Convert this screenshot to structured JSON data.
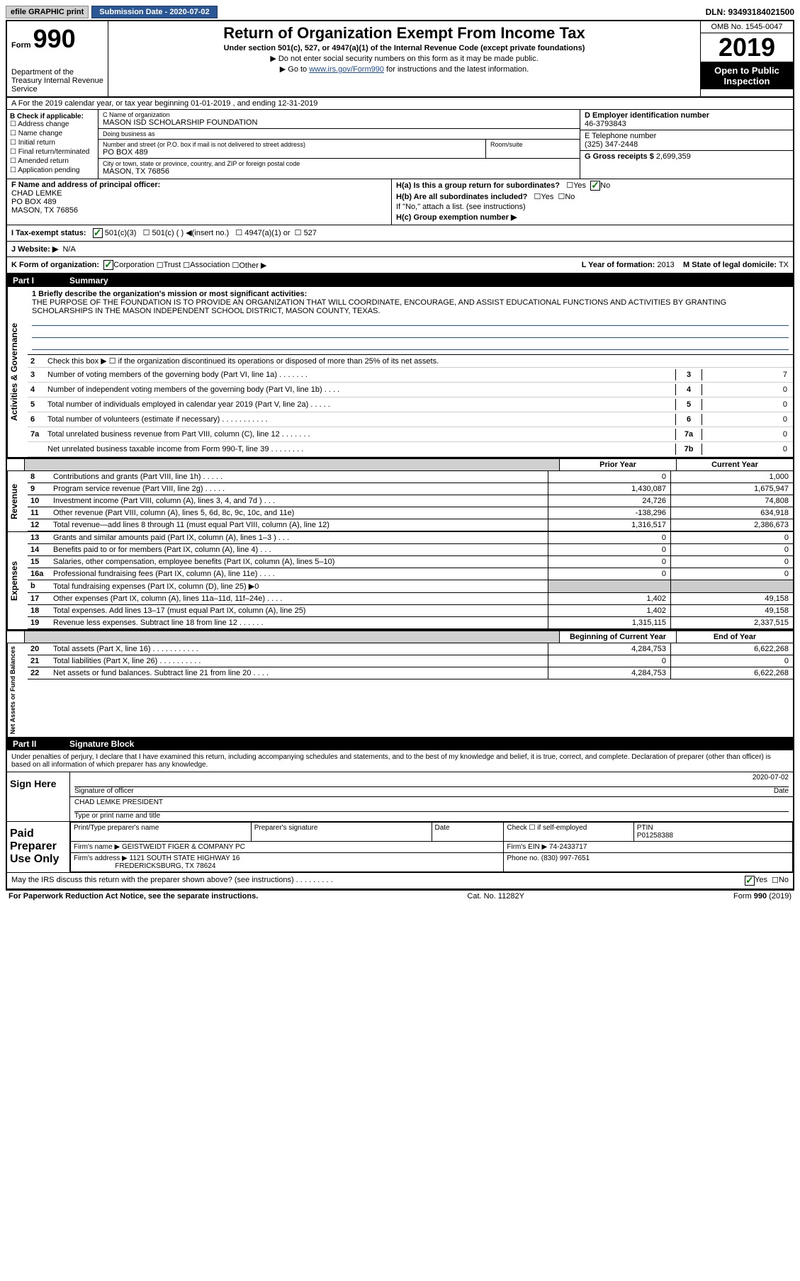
{
  "topbar": {
    "efile": "efile GRAPHIC print",
    "submission_label": "Submission Date - 2020-07-02",
    "dln": "DLN: 93493184021500"
  },
  "header": {
    "form_label": "Form",
    "form_number": "990",
    "dept": "Department of the Treasury\nInternal Revenue Service",
    "title": "Return of Organization Exempt From Income Tax",
    "subtitle": "Under section 501(c), 527, or 4947(a)(1) of the Internal Revenue Code (except private foundations)",
    "note1": "▶ Do not enter social security numbers on this form as it may be made public.",
    "note2_label": "▶ Go to ",
    "note2_link": "www.irs.gov/Form990",
    "note2_suffix": " for instructions and the latest information.",
    "omb": "OMB No. 1545-0047",
    "year": "2019",
    "pub": "Open to Public Inspection"
  },
  "row_a": "A For the 2019 calendar year, or tax year beginning 01-01-2019   , and ending 12-31-2019",
  "col_b": {
    "header": "B Check if applicable:",
    "items": [
      "Address change",
      "Name change",
      "Initial return",
      "Final return/terminated",
      "Amended return",
      "Application pending"
    ]
  },
  "col_c": {
    "name_label": "C Name of organization",
    "name": "MASON ISD SCHOLARSHIP FOUNDATION",
    "dba_label": "Doing business as",
    "dba": "",
    "addr_label": "Number and street (or P.O. box if mail is not delivered to street address)",
    "addr": "PO BOX 489",
    "room_label": "Room/suite",
    "city_label": "City or town, state or province, country, and ZIP or foreign postal code",
    "city": "MASON, TX  76856"
  },
  "col_d": {
    "ein_label": "D Employer identification number",
    "ein": "46-3793843",
    "phone_label": "E Telephone number",
    "phone": "(325) 347-2448",
    "gross_label": "G Gross receipts $",
    "gross": "2,699,359"
  },
  "row_f": {
    "f_label": "F  Name and address of principal officer:",
    "f_name": "CHAD LEMKE",
    "f_addr1": "PO BOX 489",
    "f_addr2": "MASON, TX  76856",
    "ha_label": "H(a)  Is this a group return for subordinates?",
    "ha_yes": "Yes",
    "ha_no": "No",
    "hb_label": "H(b)  Are all subordinates included?",
    "hb_note": "If \"No,\" attach a list. (see instructions)",
    "hc_label": "H(c)  Group exemption number ▶"
  },
  "row_i": {
    "label": "I  Tax-exempt status:",
    "opt1": "501(c)(3)",
    "opt2": "501(c) (  ) ◀(insert no.)",
    "opt3": "4947(a)(1) or",
    "opt4": "527"
  },
  "row_j": {
    "label": "J  Website: ▶",
    "val": "N/A"
  },
  "row_k": {
    "k_label": "K Form of organization:",
    "k_opts": [
      "Corporation",
      "Trust",
      "Association",
      "Other ▶"
    ],
    "l_label": "L Year of formation:",
    "l_val": "2013",
    "m_label": "M State of legal domicile:",
    "m_val": "TX"
  },
  "part1": {
    "header_part": "Part I",
    "header_title": "Summary",
    "line1_label": "1  Briefly describe the organization's mission or most significant activities:",
    "line1_text": "THE PURPOSE OF THE FOUNDATION IS TO PROVIDE AN ORGANIZATION THAT WILL COORDINATE, ENCOURAGE, AND ASSIST EDUCATIONAL FUNCTIONS AND ACTIVITIES BY GRANTING SCHOLARSHIPS IN THE MASON INDEPENDENT SCHOOL DISTRICT, MASON COUNTY, TEXAS.",
    "lines_ag": [
      {
        "num": "2",
        "text": "Check this box ▶ ☐  if the organization discontinued its operations or disposed of more than 25% of its net assets.",
        "box": "",
        "val": ""
      },
      {
        "num": "3",
        "text": "Number of voting members of the governing body (Part VI, line 1a)  .   .   .   .   .   .   .",
        "box": "3",
        "val": "7"
      },
      {
        "num": "4",
        "text": "Number of independent voting members of the governing body (Part VI, line 1b)  .   .   .   .",
        "box": "4",
        "val": "0"
      },
      {
        "num": "5",
        "text": "Total number of individuals employed in calendar year 2019 (Part V, line 2a)  .   .   .   .   .",
        "box": "5",
        "val": "0"
      },
      {
        "num": "6",
        "text": "Total number of volunteers (estimate if necessary)   .   .   .   .   .   .   .   .   .   .   .",
        "box": "6",
        "val": "0"
      },
      {
        "num": "7a",
        "text": "Total unrelated business revenue from Part VIII, column (C), line 12  .   .   .   .   .   .   .",
        "box": "7a",
        "val": "0"
      },
      {
        "num": "",
        "text": "Net unrelated business taxable income from Form 990-T, line 39   .   .   .   .   .   .   .   .",
        "box": "7b",
        "val": "0"
      }
    ],
    "col_headers": {
      "prior": "Prior Year",
      "current": "Current Year"
    },
    "revenue": [
      {
        "num": "8",
        "text": "Contributions and grants (Part VIII, line 1h)   .   .   .   .   .",
        "prior": "0",
        "current": "1,000"
      },
      {
        "num": "9",
        "text": "Program service revenue (Part VIII, line 2g)  .   .   .   .   .",
        "prior": "1,430,087",
        "current": "1,675,947"
      },
      {
        "num": "10",
        "text": "Investment income (Part VIII, column (A), lines 3, 4, and 7d )  .   .   .",
        "prior": "24,726",
        "current": "74,808"
      },
      {
        "num": "11",
        "text": "Other revenue (Part VIII, column (A), lines 5, 6d, 8c, 9c, 10c, and 11e)",
        "prior": "-138,296",
        "current": "634,918"
      },
      {
        "num": "12",
        "text": "Total revenue—add lines 8 through 11 (must equal Part VIII, column (A), line 12)",
        "prior": "1,316,517",
        "current": "2,386,673"
      }
    ],
    "expenses": [
      {
        "num": "13",
        "text": "Grants and similar amounts paid (Part IX, column (A), lines 1–3 )  .   .   .",
        "prior": "0",
        "current": "0"
      },
      {
        "num": "14",
        "text": "Benefits paid to or for members (Part IX, column (A), line 4)  .   .   .",
        "prior": "0",
        "current": "0"
      },
      {
        "num": "15",
        "text": "Salaries, other compensation, employee benefits (Part IX, column (A), lines 5–10)",
        "prior": "0",
        "current": "0"
      },
      {
        "num": "16a",
        "text": "Professional fundraising fees (Part IX, column (A), line 11e)  .   .   .   .",
        "prior": "0",
        "current": "0"
      },
      {
        "num": "b",
        "text": "Total fundraising expenses (Part IX, column (D), line 25) ▶0",
        "prior": "",
        "current": "",
        "shaded": true
      },
      {
        "num": "17",
        "text": "Other expenses (Part IX, column (A), lines 11a–11d, 11f–24e)  .   .   .   .",
        "prior": "1,402",
        "current": "49,158"
      },
      {
        "num": "18",
        "text": "Total expenses. Add lines 13–17 (must equal Part IX, column (A), line 25)",
        "prior": "1,402",
        "current": "49,158"
      },
      {
        "num": "19",
        "text": "Revenue less expenses. Subtract line 18 from line 12 .   .   .   .   .   .",
        "prior": "1,315,115",
        "current": "2,337,515"
      }
    ],
    "net_headers": {
      "begin": "Beginning of Current Year",
      "end": "End of Year"
    },
    "net": [
      {
        "num": "20",
        "text": "Total assets (Part X, line 16)  .   .   .   .   .   .   .   .   .   .   .",
        "prior": "4,284,753",
        "current": "6,622,268"
      },
      {
        "num": "21",
        "text": "Total liabilities (Part X, line 26)  .   .   .   .   .   .   .   .   .   .",
        "prior": "0",
        "current": "0"
      },
      {
        "num": "22",
        "text": "Net assets or fund balances. Subtract line 21 from line 20 .   .   .   .",
        "prior": "4,284,753",
        "current": "6,622,268"
      }
    ]
  },
  "side_labels": {
    "ag": "Activities & Governance",
    "rev": "Revenue",
    "exp": "Expenses",
    "net": "Net Assets or Fund Balances"
  },
  "part2": {
    "header_part": "Part II",
    "header_title": "Signature Block",
    "declaration": "Under penalties of perjury, I declare that I have examined this return, including accompanying schedules and statements, and to the best of my knowledge and belief, it is true, correct, and complete. Declaration of preparer (other than officer) is based on all information of which preparer has any knowledge.",
    "sign_here": "Sign Here",
    "sig_of_officer": "Signature of officer",
    "date": "Date",
    "date_val": "2020-07-02",
    "name_title": "CHAD LEMKE PRESIDENT",
    "type_label": "Type or print name and title",
    "paid_label": "Paid Preparer Use Only",
    "prep_name_label": "Print/Type preparer's name",
    "prep_sig_label": "Preparer's signature",
    "prep_date_label": "Date",
    "check_label": "Check ☐ if self-employed",
    "ptin_label": "PTIN",
    "ptin": "P01258388",
    "firm_name_label": "Firm's name     ▶",
    "firm_name": "GEISTWEIDT FIGER & COMPANY PC",
    "firm_ein_label": "Firm's EIN ▶",
    "firm_ein": "74-2433717",
    "firm_addr_label": "Firm's address ▶",
    "firm_addr": "1121 SOUTH STATE HIGHWAY 16",
    "firm_city": "FREDERICKSBURG, TX  78624",
    "firm_phone_label": "Phone no.",
    "firm_phone": "(830) 997-7651",
    "discuss": "May the IRS discuss this return with the preparer shown above? (see instructions)   .   .   .   .   .   .   .   .   .",
    "discuss_yes": "Yes",
    "discuss_no": "No"
  },
  "footer": {
    "left": "For Paperwork Reduction Act Notice, see the separate instructions.",
    "center": "Cat. No. 11282Y",
    "right": "Form 990 (2019)"
  }
}
